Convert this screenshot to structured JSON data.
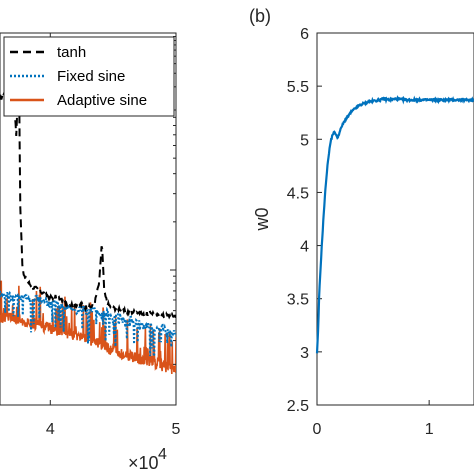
{
  "panel_b_label": "(b)",
  "chart_data": [
    {
      "type": "line",
      "panel": "a",
      "xlabel": "",
      "ylabel": "",
      "x_tick_labels": [
        "4",
        "5"
      ],
      "x_exponent_base": "×10",
      "x_exponent_power": "4",
      "xlim": [
        36000,
        50000
      ],
      "ylim_relative": [
        0,
        1
      ],
      "legend_location": "top-right",
      "series": [
        {
          "name": "tanh",
          "color": "#000000",
          "style": "dashed",
          "x": [
            36000,
            36500,
            37000,
            37300,
            37500,
            37600,
            37800,
            38000,
            38500,
            39000,
            39500,
            40000,
            40500,
            41000,
            41500,
            42000,
            42500,
            43000,
            43500,
            43900,
            44100,
            44300,
            44600,
            45000,
            45500,
            46000,
            46500,
            47000,
            47500,
            48000,
            48500,
            49000,
            49500,
            50000
          ],
          "values": [
            0.82,
            0.85,
            0.88,
            0.72,
            0.95,
            0.55,
            0.36,
            0.34,
            0.32,
            0.31,
            0.3,
            0.29,
            0.29,
            0.28,
            0.27,
            0.27,
            0.27,
            0.26,
            0.27,
            0.33,
            0.44,
            0.3,
            0.27,
            0.26,
            0.26,
            0.25,
            0.25,
            0.25,
            0.24,
            0.25,
            0.24,
            0.24,
            0.24,
            0.24
          ]
        },
        {
          "name": "Fixed sine",
          "color": "#0072BD",
          "style": "dotted",
          "x": [
            36000,
            37000,
            38000,
            38500,
            39000,
            39500,
            40000,
            40500,
            41000,
            41500,
            42000,
            42500,
            43000,
            43500,
            44000,
            44500,
            45000,
            45500,
            46000,
            46500,
            47000,
            47500,
            48000,
            48500,
            49000,
            49500,
            50000
          ],
          "values": [
            0.3,
            0.29,
            0.29,
            0.28,
            0.29,
            0.28,
            0.27,
            0.28,
            0.26,
            0.27,
            0.25,
            0.26,
            0.25,
            0.26,
            0.24,
            0.25,
            0.23,
            0.24,
            0.22,
            0.23,
            0.22,
            0.21,
            0.22,
            0.2,
            0.21,
            0.19,
            0.2
          ]
        },
        {
          "name": "Adaptive sine",
          "color": "#D95319",
          "style": "solid",
          "x": [
            36000,
            37000,
            38000,
            39000,
            40000,
            41000,
            42000,
            43000,
            44000,
            45000,
            46000,
            47000,
            48000,
            49000,
            50000
          ],
          "values": [
            0.24,
            0.24,
            0.23,
            0.22,
            0.21,
            0.2,
            0.19,
            0.18,
            0.17,
            0.15,
            0.14,
            0.13,
            0.12,
            0.11,
            0.1
          ]
        }
      ]
    },
    {
      "type": "line",
      "panel": "b",
      "xlabel": "",
      "ylabel": "w0",
      "xlim": [
        0,
        1.4
      ],
      "ylim": [
        2.5,
        6
      ],
      "x_tick_labels": [
        "0",
        "1"
      ],
      "y_tick_labels": [
        "2.5",
        "3",
        "3.5",
        "4",
        "4.5",
        "5",
        "5.5",
        "6"
      ],
      "series": [
        {
          "color": "#0072BD",
          "x": [
            0,
            0.01,
            0.02,
            0.04,
            0.06,
            0.08,
            0.1,
            0.12,
            0.14,
            0.16,
            0.18,
            0.2,
            0.22,
            0.25,
            0.3,
            0.35,
            0.4,
            0.45,
            0.5,
            0.55,
            0.6,
            0.65,
            0.7,
            0.8,
            0.9,
            1.0,
            1.1,
            1.2,
            1.3,
            1.4
          ],
          "values": [
            2.98,
            3.2,
            3.55,
            3.95,
            4.3,
            4.6,
            4.82,
            4.97,
            5.05,
            5.07,
            5.01,
            5.06,
            5.12,
            5.18,
            5.25,
            5.3,
            5.33,
            5.35,
            5.36,
            5.37,
            5.38,
            5.37,
            5.38,
            5.37,
            5.37,
            5.37,
            5.37,
            5.37,
            5.37,
            5.37
          ]
        }
      ]
    }
  ]
}
